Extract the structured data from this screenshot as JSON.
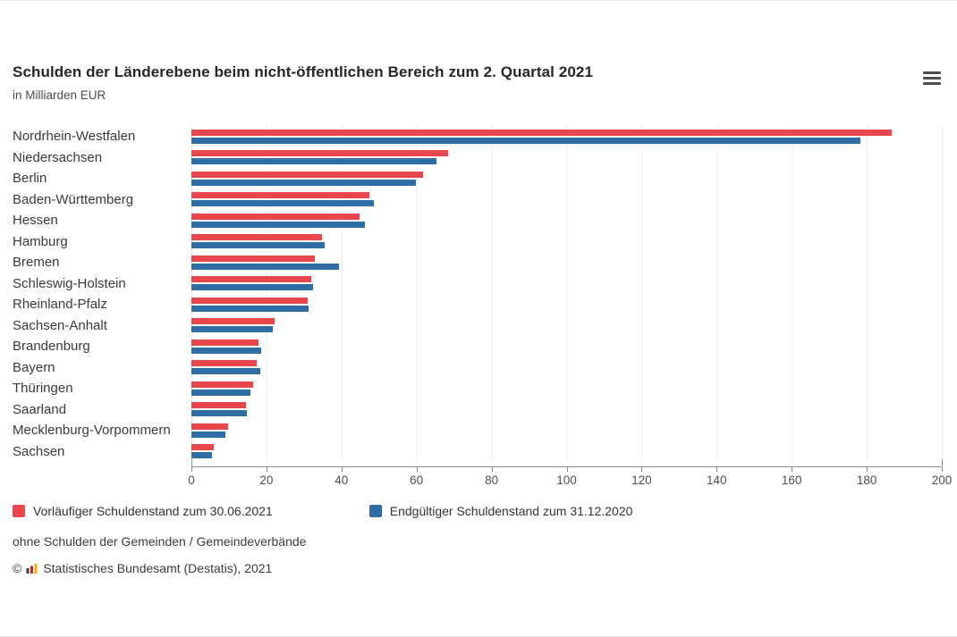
{
  "header": {
    "title": "Schulden der Länderebene beim nicht-öffentlichen Bereich zum 2. Quartal 2021",
    "subtitle": "in Milliarden EUR",
    "menu_icon": "hamburger-menu-icon"
  },
  "chart_data": {
    "type": "bar",
    "orientation": "horizontal",
    "title": "Schulden der Länderebene beim nicht-öffentlichen Bereich zum 2. Quartal 2021",
    "xlabel": "in Milliarden EUR",
    "xlim": [
      0,
      200
    ],
    "x_ticks": [
      0,
      20,
      40,
      60,
      80,
      100,
      120,
      140,
      160,
      180,
      200
    ],
    "grid": true,
    "legend_position": "bottom",
    "categories": [
      "Nordrhein-Westfalen",
      "Niedersachsen",
      "Berlin",
      "Baden-Württemberg",
      "Hessen",
      "Hamburg",
      "Bremen",
      "Schleswig-Holstein",
      "Rheinland-Pfalz",
      "Sachsen-Anhalt",
      "Brandenburg",
      "Bayern",
      "Thüringen",
      "Saarland",
      "Mecklenburg-Vorpommern",
      "Sachsen"
    ],
    "series": [
      {
        "name": "Vorläufiger Schuldenstand zum 30.06.2021",
        "color": "#e8484d",
        "values": [
          186.6,
          68.4,
          61.7,
          47.4,
          44.8,
          34.8,
          32.9,
          31.9,
          31.0,
          22.2,
          17.9,
          17.4,
          16.4,
          14.6,
          9.8,
          6.0
        ]
      },
      {
        "name": "Endgültiger Schuldenstand zum 31.12.2020",
        "color": "#2f6da4",
        "values": [
          178.3,
          65.3,
          59.8,
          48.6,
          46.2,
          35.5,
          39.3,
          32.4,
          31.2,
          21.7,
          18.6,
          18.3,
          15.7,
          14.8,
          9.0,
          5.5
        ]
      }
    ]
  },
  "legend": {
    "items": [
      {
        "label": "Vorläufiger Schuldenstand zum 30.06.2021",
        "color": "#e8484d"
      },
      {
        "label": "Endgültiger Schuldenstand zum 31.12.2020",
        "color": "#2f6da4"
      }
    ]
  },
  "footer": {
    "footnote": "ohne Schulden der Gemeinden / Gemeindeverbände",
    "copyright_prefix": "©",
    "copyright_text": "Statistisches Bundesamt (Destatis), 2021",
    "logo": "destatis-bar-chart-logo"
  }
}
